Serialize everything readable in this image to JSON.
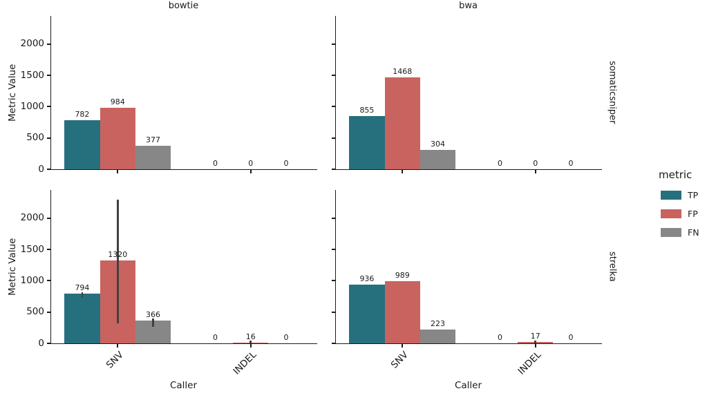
{
  "chart_data": {
    "type": "bar",
    "facet_columns": [
      "bowtie",
      "bwa"
    ],
    "facet_rows": [
      "somaticsniper",
      "strelka"
    ],
    "categories": [
      "SNV",
      "INDEL"
    ],
    "series": [
      "TP",
      "FP",
      "FN"
    ],
    "colors": {
      "TP": "#26707e",
      "FP": "#c9635f",
      "FN": "#878787"
    },
    "errorbar_color": "#404040",
    "xlabel": "Caller",
    "ylabel": "Metric Value",
    "ylim": [
      0,
      2450
    ],
    "yticks": [
      0,
      500,
      1000,
      1500,
      2000
    ],
    "legend_title": "metric",
    "legend_position": "right",
    "grid": false,
    "panels": [
      {
        "row": "somaticsniper",
        "col": "bowtie",
        "groups": [
          {
            "category": "SNV",
            "bars": [
              {
                "series": "TP",
                "value": 782,
                "error": null
              },
              {
                "series": "FP",
                "value": 984,
                "error": null
              },
              {
                "series": "FN",
                "value": 377,
                "error": null
              }
            ]
          },
          {
            "category": "INDEL",
            "bars": [
              {
                "series": "TP",
                "value": 0,
                "error": null
              },
              {
                "series": "FP",
                "value": 0,
                "error": null
              },
              {
                "series": "FN",
                "value": 0,
                "error": null
              }
            ]
          }
        ]
      },
      {
        "row": "somaticsniper",
        "col": "bwa",
        "groups": [
          {
            "category": "SNV",
            "bars": [
              {
                "series": "TP",
                "value": 855,
                "error": null
              },
              {
                "series": "FP",
                "value": 1468,
                "error": null
              },
              {
                "series": "FN",
                "value": 304,
                "error": null
              }
            ]
          },
          {
            "category": "INDEL",
            "bars": [
              {
                "series": "TP",
                "value": 0,
                "error": null
              },
              {
                "series": "FP",
                "value": 0,
                "error": null
              },
              {
                "series": "FN",
                "value": 0,
                "error": null
              }
            ]
          }
        ]
      },
      {
        "row": "strelka",
        "col": "bowtie",
        "groups": [
          {
            "category": "SNV",
            "bars": [
              {
                "series": "TP",
                "value": 794,
                "error": [
                  730,
                  815
                ]
              },
              {
                "series": "FP",
                "value": 1320,
                "error": [
                  320,
                  2290
                ]
              },
              {
                "series": "FN",
                "value": 366,
                "error": [
                  260,
                  400
                ]
              }
            ]
          },
          {
            "category": "INDEL",
            "bars": [
              {
                "series": "TP",
                "value": 0,
                "error": null
              },
              {
                "series": "FP",
                "value": 16,
                "error": [
                  0,
                  45
                ]
              },
              {
                "series": "FN",
                "value": 0,
                "error": null
              }
            ]
          }
        ]
      },
      {
        "row": "strelka",
        "col": "bwa",
        "groups": [
          {
            "category": "SNV",
            "bars": [
              {
                "series": "TP",
                "value": 936,
                "error": null
              },
              {
                "series": "FP",
                "value": 989,
                "error": null
              },
              {
                "series": "FN",
                "value": 223,
                "error": null
              }
            ]
          },
          {
            "category": "INDEL",
            "bars": [
              {
                "series": "TP",
                "value": 0,
                "error": null
              },
              {
                "series": "FP",
                "value": 17,
                "error": [
                  0,
                  40
                ]
              },
              {
                "series": "FN",
                "value": 0,
                "error": null
              }
            ]
          }
        ]
      }
    ]
  }
}
